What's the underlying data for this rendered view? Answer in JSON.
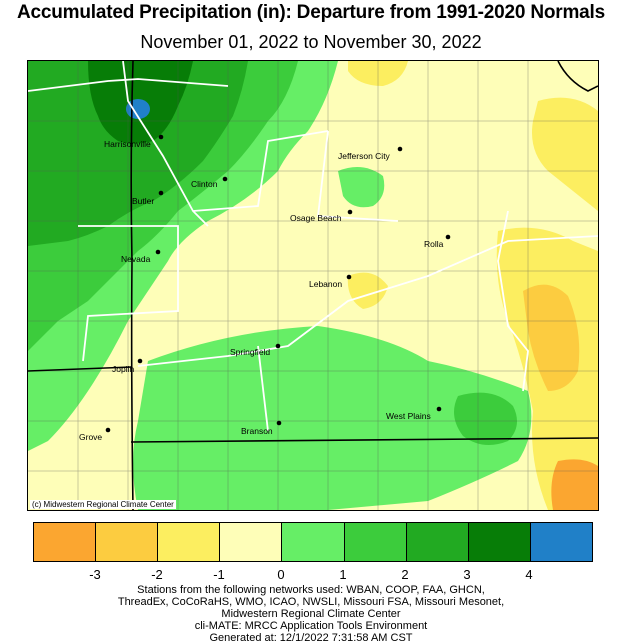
{
  "title": "Accumulated Precipitation (in): Departure from 1991-2020 Normals",
  "subtitle": "November 01, 2022 to November 30, 2022",
  "copyright": "(c) Midwestern Regional Climate Center",
  "legend": {
    "bins": [
      {
        "color": "#fba630"
      },
      {
        "color": "#fccc40"
      },
      {
        "color": "#fcee60"
      },
      {
        "color": "#fefeb8"
      },
      {
        "color": "#66ee66"
      },
      {
        "color": "#3ccc3c"
      },
      {
        "color": "#22aa22"
      },
      {
        "color": "#077d07"
      },
      {
        "color": "#2080c8"
      }
    ],
    "ticks": [
      "-3",
      "-2",
      "-1",
      "0",
      "1",
      "2",
      "3",
      "4"
    ]
  },
  "cities": [
    {
      "name": "Harrisonville"
    },
    {
      "name": "Clinton"
    },
    {
      "name": "Butler"
    },
    {
      "name": "Jefferson City"
    },
    {
      "name": "Osage Beach"
    },
    {
      "name": "Nevada"
    },
    {
      "name": "Rolla"
    },
    {
      "name": "Lebanon"
    },
    {
      "name": "Springfield"
    },
    {
      "name": "Joplin"
    },
    {
      "name": "West Plains"
    },
    {
      "name": "Branson"
    },
    {
      "name": "Grove"
    }
  ],
  "footer": {
    "line1": "Stations from the following networks used: WBAN, COOP, FAA, GHCN,",
    "line2": "ThreadEx, CoCoRaHS, WMO, ICAO, NWSLI, Missouri FSA, Missouri Mesonet,",
    "line3": "Midwestern Regional Climate Center",
    "line4": "cli-MATE: MRCC Application Tools Environment",
    "line5": "Generated at: 12/1/2022 7:31:58 AM CST"
  }
}
